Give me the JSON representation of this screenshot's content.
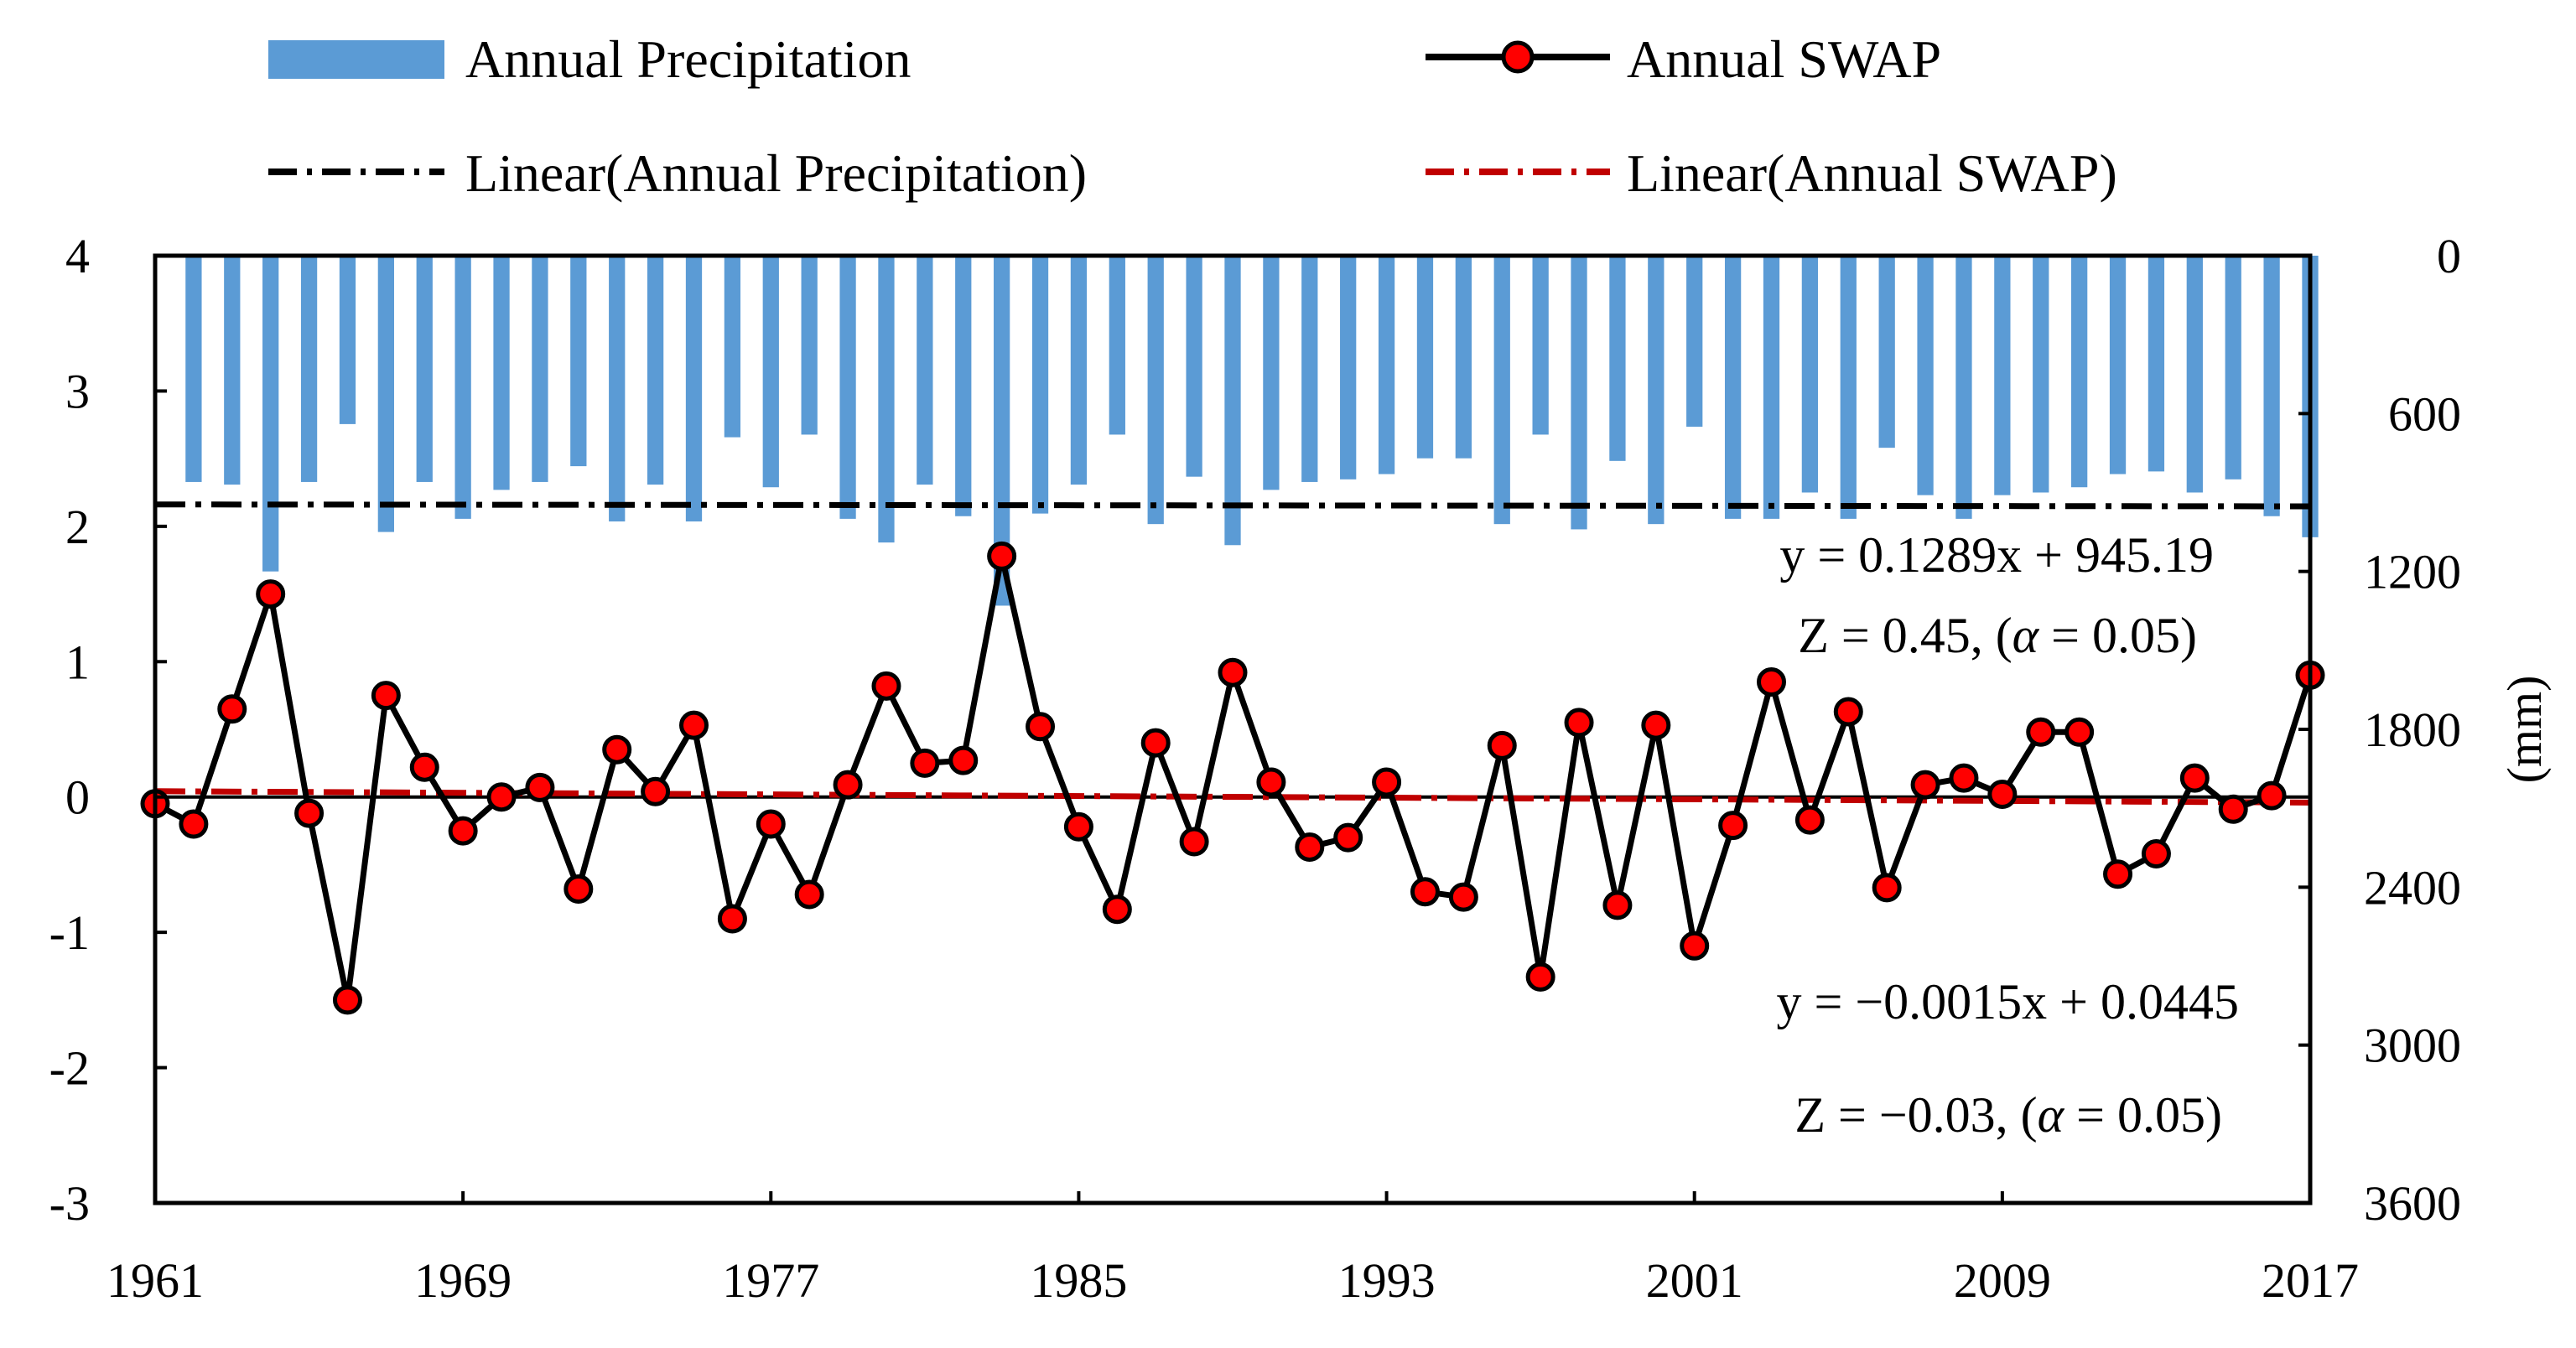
{
  "chart_data": {
    "type": "bar+line",
    "x": [
      1961,
      1962,
      1963,
      1964,
      1965,
      1966,
      1967,
      1968,
      1969,
      1970,
      1971,
      1972,
      1973,
      1974,
      1975,
      1976,
      1977,
      1978,
      1979,
      1980,
      1981,
      1982,
      1983,
      1984,
      1985,
      1986,
      1987,
      1988,
      1989,
      1990,
      1991,
      1992,
      1993,
      1994,
      1995,
      1996,
      1997,
      1998,
      1999,
      2000,
      2001,
      2002,
      2003,
      2004,
      2005,
      2006,
      2007,
      2008,
      2009,
      2010,
      2011,
      2012,
      2013,
      2014,
      2015,
      2016,
      2017
    ],
    "x_tick_labels": [
      "1961",
      "1969",
      "1977",
      "1985",
      "1993",
      "2001",
      "2009",
      "2017"
    ],
    "xlim": [
      1961,
      2017
    ],
    "series": [
      {
        "name": "Annual Precipitation",
        "type": "bar",
        "axis": "right",
        "color": "#5b9bd5",
        "values": [
          0,
          860,
          870,
          1200,
          860,
          640,
          1050,
          860,
          1000,
          890,
          860,
          800,
          1010,
          870,
          1010,
          690,
          880,
          680,
          1000,
          1090,
          870,
          990,
          1330,
          980,
          870,
          680,
          1020,
          840,
          1100,
          890,
          860,
          850,
          830,
          770,
          770,
          1020,
          680,
          1040,
          780,
          1020,
          650,
          1000,
          1000,
          900,
          1000,
          730,
          910,
          1000,
          910,
          900,
          880,
          830,
          820,
          900,
          850,
          990,
          1070
        ]
      },
      {
        "name": "Annual SWAP",
        "type": "line",
        "axis": "left",
        "color": "#000000",
        "marker_color": "#ff0000",
        "values": [
          -0.05,
          -0.2,
          0.65,
          1.5,
          -0.12,
          -1.5,
          0.75,
          0.22,
          -0.25,
          0.0,
          0.07,
          -0.68,
          0.35,
          0.04,
          0.53,
          -0.9,
          -0.2,
          -0.72,
          0.09,
          0.82,
          0.25,
          0.27,
          1.78,
          0.52,
          -0.22,
          -0.83,
          0.4,
          -0.33,
          0.92,
          0.11,
          -0.37,
          -0.3,
          0.11,
          -0.7,
          -0.74,
          0.38,
          -1.33,
          0.55,
          -0.8,
          0.53,
          -1.1,
          -0.21,
          0.85,
          -0.17,
          0.63,
          -0.67,
          0.09,
          0.14,
          0.02,
          0.48,
          0.48,
          -0.57,
          -0.42,
          0.14,
          -0.09,
          0.01,
          0.9
        ]
      }
    ],
    "trendlines": [
      {
        "name": "Linear(Annual Precipitation)",
        "axis": "right",
        "color": "#000000",
        "start": 945.32,
        "end": 952.54,
        "equation": "y = 0.1289x + 945.19",
        "z_label": "Z = 0.45, (",
        "alpha": "α",
        "z_tail": " = 0.05)"
      },
      {
        "name": "Linear(Annual SWAP)",
        "axis": "left",
        "color": "#c00000",
        "start": 0.043,
        "end": -0.041,
        "equation": "y = −0.0015x + 0.0445",
        "z_label": "Z = −0.03, (",
        "alpha": "α",
        "z_tail": " = 0.05)"
      }
    ],
    "left_axis": {
      "ylim": [
        -3,
        4
      ],
      "ticks": [
        "4",
        "3",
        "2",
        "1",
        "0",
        "-1",
        "-2",
        "-3"
      ]
    },
    "right_axis": {
      "ylim": [
        0,
        3600
      ],
      "inverted": true,
      "ticks": [
        "0",
        "600",
        "1200",
        "1800",
        "2400",
        "3000",
        "3600"
      ],
      "label": "(mm)"
    },
    "legend": {
      "position": "top",
      "entries": [
        "Annual Precipitation",
        "Annual SWAP",
        "Linear(Annual Precipitation)",
        "Linear(Annual SWAP)"
      ]
    }
  }
}
